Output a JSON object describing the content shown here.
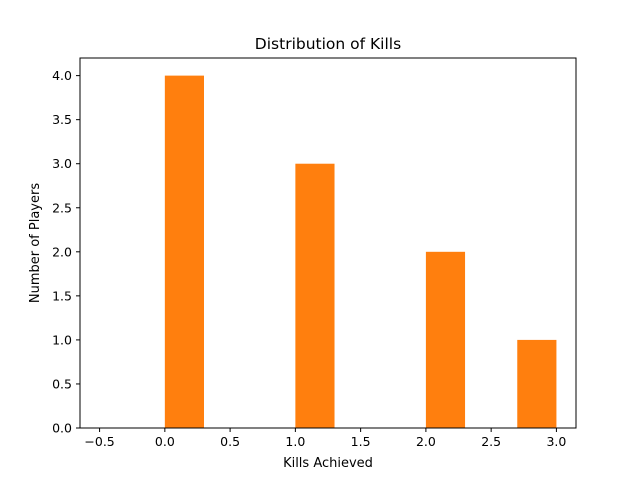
{
  "chart_data": {
    "type": "bar",
    "title": "Distribution of Kills",
    "xlabel": "Kills Achieved",
    "ylabel": "Number of Players",
    "xlim": [
      -0.65,
      3.15
    ],
    "ylim": [
      0,
      4.2
    ],
    "xticks": [
      -0.5,
      0.0,
      0.5,
      1.0,
      1.5,
      2.0,
      2.5,
      3.0
    ],
    "xtick_labels": [
      "−0.5",
      "0.0",
      "0.5",
      "1.0",
      "1.5",
      "2.0",
      "2.5",
      "3.0"
    ],
    "yticks": [
      0.0,
      0.5,
      1.0,
      1.5,
      2.0,
      2.5,
      3.0,
      3.5,
      4.0
    ],
    "ytick_labels": [
      "0.0",
      "0.5",
      "1.0",
      "1.5",
      "2.0",
      "2.5",
      "3.0",
      "3.5",
      "4.0"
    ],
    "bars": [
      {
        "x_start": 0.0,
        "x_end": 0.3,
        "value": 4
      },
      {
        "x_start": 1.0,
        "x_end": 1.3,
        "value": 3
      },
      {
        "x_start": 2.0,
        "x_end": 2.3,
        "value": 2
      },
      {
        "x_start": 2.7,
        "x_end": 3.0,
        "value": 1
      }
    ],
    "bar_color": "#ff7f0e",
    "grid": false,
    "legend": "none"
  }
}
